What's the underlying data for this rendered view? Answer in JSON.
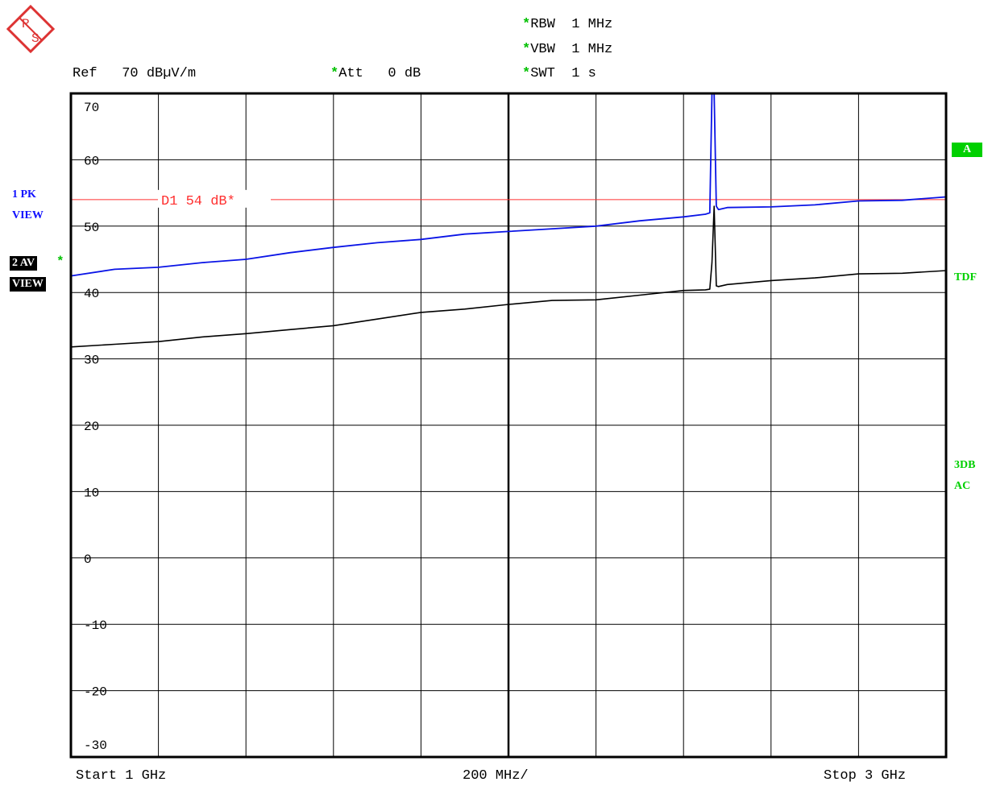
{
  "header": {
    "ref_label": "Ref",
    "ref_value": "70 dBµV/m",
    "att_label": "Att",
    "att_value": "0 dB",
    "rbw_label": "RBW",
    "rbw_value": "1 MHz",
    "vbw_label": "VBW",
    "vbw_value": "1 MHz",
    "swt_label": "SWT",
    "swt_value": "1 s",
    "star": "*"
  },
  "footer": {
    "start": "Start  1 GHz",
    "span": "200 MHz/",
    "stop": "Stop  3 GHz"
  },
  "left_panel": {
    "trace1_mode": "1 PK",
    "trace1_view": "VIEW",
    "trace2_mode": "2 AV",
    "trace2_view": "VIEW",
    "star": "*"
  },
  "right_panel": {
    "trace_box": "A",
    "tdf": "TDF",
    "line1": "3DB",
    "line2": "AC"
  },
  "colors": {
    "trace1": "#0a14e6",
    "trace2": "#000000",
    "display_line": "#ff3030",
    "status_green": "#00d000",
    "grid": "#000000"
  },
  "icons": {
    "logo": "rohde-schwarz-logo"
  },
  "chart_data": {
    "type": "line",
    "xlim": [
      1,
      3
    ],
    "x_unit": "GHz",
    "ylim": [
      -30,
      70
    ],
    "y_unit": "dBµV/m",
    "y_ticks": [
      70,
      60,
      50,
      40,
      30,
      20,
      10,
      0,
      -10,
      -20,
      -30
    ],
    "y_tick_labels": [
      "70",
      "60",
      "50",
      "40",
      "30",
      "20",
      "10",
      "0",
      "-10",
      "-20",
      "-30"
    ],
    "grid": true,
    "display_line": {
      "label": "D1  54 dB*",
      "value": 54
    },
    "series": [
      {
        "name": "1 PK",
        "x": [
          1.0,
          1.1,
          1.2,
          1.3,
          1.4,
          1.5,
          1.6,
          1.7,
          1.8,
          1.9,
          2.0,
          2.1,
          2.2,
          2.3,
          2.4,
          2.45,
          2.46,
          2.465,
          2.47,
          2.475,
          2.48,
          2.5,
          2.6,
          2.7,
          2.8,
          2.9,
          3.0
        ],
        "y": [
          42.5,
          43.5,
          43.8,
          44.5,
          45.0,
          46.0,
          46.8,
          47.5,
          48.0,
          48.8,
          49.2,
          49.6,
          50.0,
          50.8,
          51.4,
          51.8,
          52.0,
          70,
          70,
          53.0,
          52.5,
          52.8,
          52.9,
          53.2,
          53.8,
          53.9,
          54.4
        ]
      },
      {
        "name": "2 AV",
        "x": [
          1.0,
          1.1,
          1.2,
          1.3,
          1.4,
          1.5,
          1.6,
          1.7,
          1.8,
          1.9,
          2.0,
          2.1,
          2.2,
          2.3,
          2.4,
          2.45,
          2.46,
          2.465,
          2.47,
          2.475,
          2.48,
          2.5,
          2.6,
          2.7,
          2.8,
          2.9,
          3.0
        ],
        "y": [
          31.8,
          32.2,
          32.6,
          33.3,
          33.8,
          34.4,
          35.0,
          36.0,
          37.0,
          37.5,
          38.2,
          38.8,
          38.9,
          39.6,
          40.3,
          40.4,
          40.5,
          44.5,
          53.0,
          41.0,
          40.9,
          41.2,
          41.8,
          42.2,
          42.8,
          42.9,
          43.3
        ]
      }
    ]
  }
}
